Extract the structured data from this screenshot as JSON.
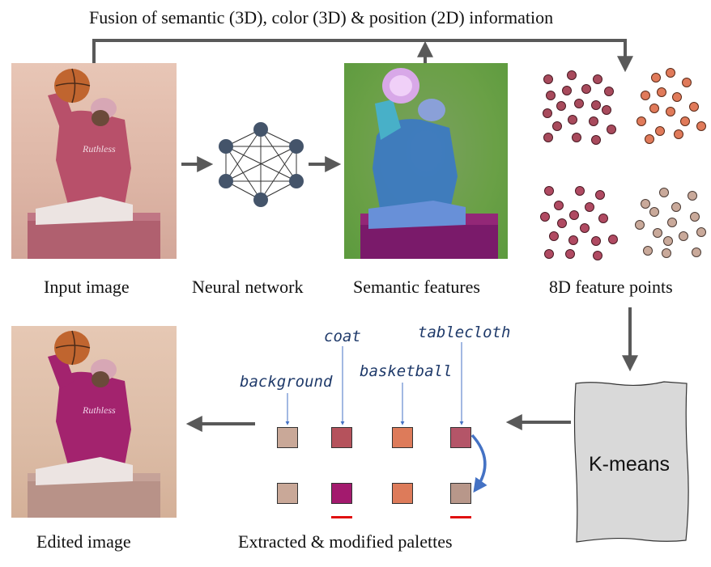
{
  "title": "Fusion of semantic (3D), color (3D) & position (2D) information",
  "stages": {
    "input_image": "Input image",
    "neural_network": "Neural network",
    "semantic_features": "Semantic features",
    "feature_points": "8D feature points",
    "kmeans": "K-means",
    "palettes": "Extracted & modified palettes",
    "edited_image": "Edited image"
  },
  "palette_labels": {
    "background": "background",
    "coat": "coat",
    "basketball": "basketball",
    "tablecloth": "tablecloth"
  },
  "colors": {
    "arrow": "#595959",
    "node": "#44546a",
    "highlight": "#e01010",
    "curve_arrow": "#4472c4",
    "cluster_1": "#a84a5c",
    "cluster_2": "#e07a5a",
    "cluster_3": "#b04a62",
    "cluster_4": "#c9a99a",
    "extracted": [
      "#c9a898",
      "#b5525c",
      "#dd7b5a",
      "#b45568"
    ],
    "modified": [
      "#c9a898",
      "#a31a6e",
      "#dd7b5a",
      "#b8978a"
    ]
  }
}
